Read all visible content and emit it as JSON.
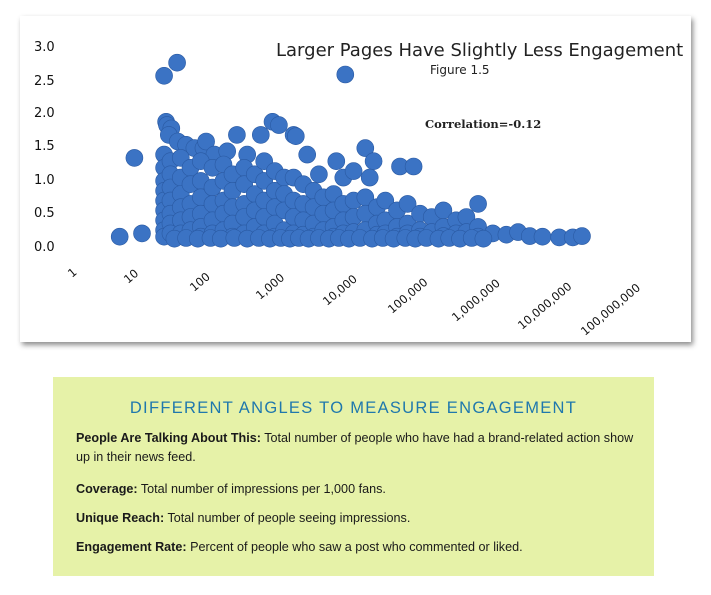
{
  "chart_data": {
    "type": "scatter",
    "title": "Larger Pages Have Slightly Less Engagement",
    "subtitle": "Figure 1.5",
    "annotation": "Correlation=-0.12",
    "x_scale": "log",
    "xlim": [
      1,
      100000000
    ],
    "ylim": [
      0,
      3.0
    ],
    "x_tick_labels": [
      "1",
      "10",
      "100",
      "1,000",
      "10,000",
      "100,000",
      "1,000,000",
      "10,000,000",
      "100,000,000"
    ],
    "y_tick_labels": [
      "3.0",
      "2.5",
      "2.0",
      "1.5",
      "1.0",
      "0.5",
      "0.0"
    ],
    "point_color": "#3b73c4",
    "grid": false,
    "points": [
      [
        6,
        0.05
      ],
      [
        13,
        0.1
      ],
      [
        10,
        1.25
      ],
      [
        28,
        2.5
      ],
      [
        44,
        2.7
      ],
      [
        15000,
        2.52
      ],
      [
        30,
        1.8
      ],
      [
        31,
        1.75
      ],
      [
        36,
        1.7
      ],
      [
        33,
        1.6
      ],
      [
        45,
        1.5
      ],
      [
        60,
        1.45
      ],
      [
        80,
        1.4
      ],
      [
        110,
        1.4
      ],
      [
        120,
        1.5
      ],
      [
        160,
        1.3
      ],
      [
        250,
        1.35
      ],
      [
        350,
        1.6
      ],
      [
        500,
        1.3
      ],
      [
        800,
        1.6
      ],
      [
        1200,
        1.8
      ],
      [
        1500,
        1.75
      ],
      [
        2500,
        1.6
      ],
      [
        2700,
        1.58
      ],
      [
        30000,
        1.4
      ],
      [
        40000,
        1.2
      ],
      [
        100000,
        1.12
      ],
      [
        160000,
        1.12
      ],
      [
        4000,
        1.3
      ],
      [
        6000,
        1.0
      ],
      [
        11000,
        1.2
      ],
      [
        14000,
        0.95
      ],
      [
        20000,
        1.05
      ],
      [
        35000,
        0.95
      ],
      [
        28,
        1.3
      ],
      [
        28,
        1.1
      ],
      [
        28,
        0.9
      ],
      [
        28,
        0.75
      ],
      [
        28,
        0.6
      ],
      [
        28,
        0.45
      ],
      [
        28,
        0.3
      ],
      [
        28,
        0.15
      ],
      [
        28,
        0.05
      ],
      [
        35,
        1.2
      ],
      [
        35,
        1.0
      ],
      [
        35,
        0.8
      ],
      [
        35,
        0.6
      ],
      [
        35,
        0.4
      ],
      [
        35,
        0.25
      ],
      [
        35,
        0.1
      ],
      [
        50,
        1.25
      ],
      [
        50,
        0.95
      ],
      [
        50,
        0.7
      ],
      [
        50,
        0.5
      ],
      [
        50,
        0.3
      ],
      [
        50,
        0.1
      ],
      [
        70,
        1.1
      ],
      [
        70,
        0.85
      ],
      [
        70,
        0.55
      ],
      [
        70,
        0.35
      ],
      [
        70,
        0.15
      ],
      [
        100,
        1.2
      ],
      [
        100,
        0.9
      ],
      [
        100,
        0.65
      ],
      [
        100,
        0.4
      ],
      [
        100,
        0.2
      ],
      [
        100,
        0.05
      ],
      [
        150,
        1.1
      ],
      [
        150,
        0.8
      ],
      [
        150,
        0.55
      ],
      [
        150,
        0.3
      ],
      [
        150,
        0.1
      ],
      [
        220,
        1.15
      ],
      [
        220,
        0.9
      ],
      [
        220,
        0.6
      ],
      [
        220,
        0.4
      ],
      [
        220,
        0.15
      ],
      [
        300,
        1.0
      ],
      [
        300,
        0.75
      ],
      [
        300,
        0.5
      ],
      [
        300,
        0.25
      ],
      [
        300,
        0.05
      ],
      [
        450,
        1.1
      ],
      [
        450,
        0.85
      ],
      [
        450,
        0.55
      ],
      [
        450,
        0.35
      ],
      [
        450,
        0.1
      ],
      [
        650,
        1.0
      ],
      [
        650,
        0.7
      ],
      [
        650,
        0.45
      ],
      [
        650,
        0.2
      ],
      [
        900,
        1.2
      ],
      [
        900,
        0.9
      ],
      [
        900,
        0.6
      ],
      [
        900,
        0.35
      ],
      [
        900,
        0.1
      ],
      [
        1300,
        1.05
      ],
      [
        1300,
        0.75
      ],
      [
        1300,
        0.5
      ],
      [
        1300,
        0.25
      ],
      [
        1300,
        0.05
      ],
      [
        1800,
        0.95
      ],
      [
        1800,
        0.7
      ],
      [
        1800,
        0.45
      ],
      [
        1800,
        0.15
      ],
      [
        2500,
        0.95
      ],
      [
        2500,
        0.6
      ],
      [
        2500,
        0.35
      ],
      [
        2500,
        0.1
      ],
      [
        3500,
        0.85
      ],
      [
        3500,
        0.55
      ],
      [
        3500,
        0.3
      ],
      [
        3500,
        0.08
      ],
      [
        5000,
        0.75
      ],
      [
        5000,
        0.5
      ],
      [
        5000,
        0.25
      ],
      [
        5000,
        0.05
      ],
      [
        7000,
        0.65
      ],
      [
        7000,
        0.4
      ],
      [
        7000,
        0.15
      ],
      [
        10000,
        0.7
      ],
      [
        10000,
        0.45
      ],
      [
        10000,
        0.2
      ],
      [
        10000,
        0.05
      ],
      [
        14000,
        0.55
      ],
      [
        14000,
        0.3
      ],
      [
        14000,
        0.1
      ],
      [
        20000,
        0.6
      ],
      [
        20000,
        0.35
      ],
      [
        20000,
        0.12
      ],
      [
        30000,
        0.65
      ],
      [
        30000,
        0.4
      ],
      [
        30000,
        0.15
      ],
      [
        45000,
        0.5
      ],
      [
        45000,
        0.25
      ],
      [
        45000,
        0.08
      ],
      [
        60000,
        0.6
      ],
      [
        60000,
        0.3
      ],
      [
        60000,
        0.1
      ],
      [
        90000,
        0.45
      ],
      [
        90000,
        0.2
      ],
      [
        90000,
        0.05
      ],
      [
        130000,
        0.55
      ],
      [
        130000,
        0.25
      ],
      [
        130000,
        0.1
      ],
      [
        200000,
        0.4
      ],
      [
        200000,
        0.15
      ],
      [
        200000,
        0.05
      ],
      [
        300000,
        0.35
      ],
      [
        300000,
        0.12
      ],
      [
        450000,
        0.45
      ],
      [
        450000,
        0.2
      ],
      [
        450000,
        0.06
      ],
      [
        700000,
        0.3
      ],
      [
        700000,
        0.1
      ],
      [
        1000000,
        0.35
      ],
      [
        1000000,
        0.12
      ],
      [
        1500000,
        0.55
      ],
      [
        1500000,
        0.2
      ],
      [
        1500000,
        0.05
      ],
      [
        2500000,
        0.1
      ],
      [
        4000000,
        0.08
      ],
      [
        6000000,
        0.12
      ],
      [
        9000000,
        0.06
      ],
      [
        14000000,
        0.05
      ],
      [
        25000000,
        0.04
      ],
      [
        40000000,
        0.04
      ],
      [
        55000000,
        0.06
      ],
      [
        40,
        0.02
      ],
      [
        60,
        0.03
      ],
      [
        90,
        0.02
      ],
      [
        140,
        0.03
      ],
      [
        200,
        0.02
      ],
      [
        320,
        0.03
      ],
      [
        500,
        0.02
      ],
      [
        750,
        0.03
      ],
      [
        1100,
        0.02
      ],
      [
        1600,
        0.03
      ],
      [
        2200,
        0.02
      ],
      [
        3000,
        0.03
      ],
      [
        4200,
        0.02
      ],
      [
        6000,
        0.03
      ],
      [
        8500,
        0.02
      ],
      [
        12000,
        0.03
      ],
      [
        17000,
        0.02
      ],
      [
        25000,
        0.03
      ],
      [
        38000,
        0.02
      ],
      [
        55000,
        0.03
      ],
      [
        80000,
        0.02
      ],
      [
        120000,
        0.03
      ],
      [
        170000,
        0.02
      ],
      [
        250000,
        0.03
      ],
      [
        380000,
        0.02
      ],
      [
        550000,
        0.03
      ],
      [
        800000,
        0.02
      ],
      [
        1200000,
        0.03
      ],
      [
        1800000,
        0.02
      ]
    ]
  },
  "info": {
    "title": "DIFFERENT ANGLES TO MEASURE ENGAGEMENT",
    "items": [
      {
        "term": "People Are Talking About This:",
        "text": " Total number of people who have had a brand-related action show up in their news feed."
      },
      {
        "term": "Coverage:",
        "text": " Total number of impressions per 1,000 fans."
      },
      {
        "term": "Unique Reach:",
        "text": " Total number of people seeing impressions."
      },
      {
        "term": "Engagement Rate:",
        "text": " Percent of people who saw a post who commented or liked."
      }
    ]
  }
}
